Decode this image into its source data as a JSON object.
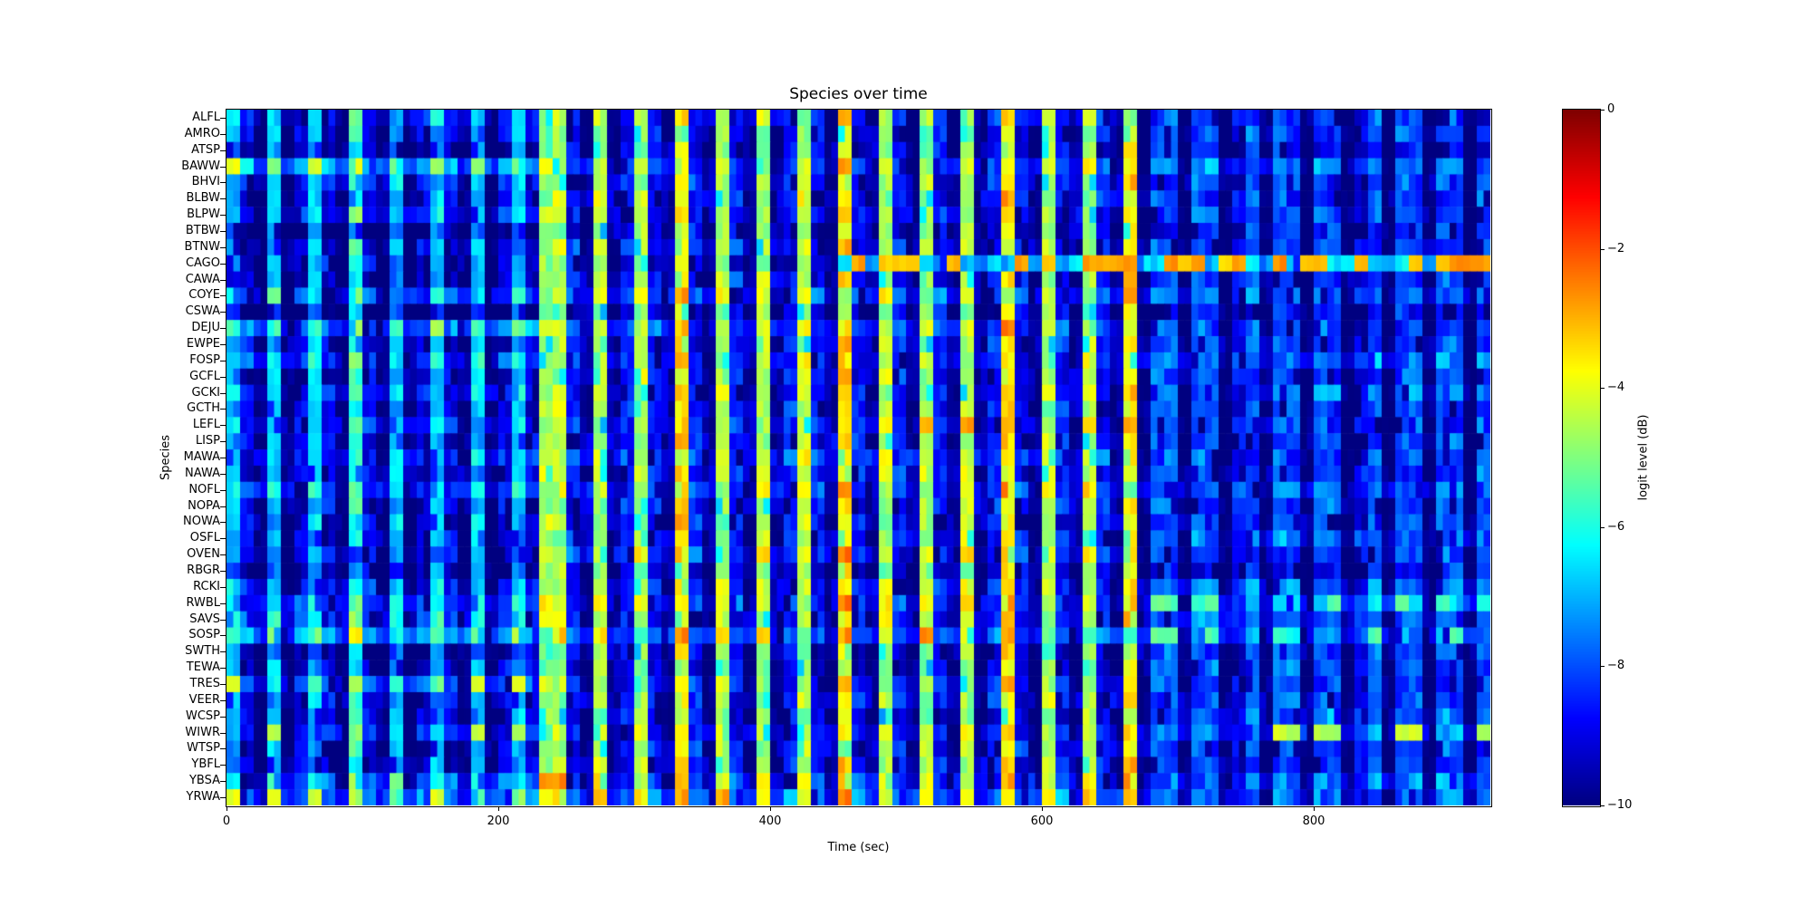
{
  "figure": {
    "background": "#ffffff"
  },
  "chart_data": {
    "type": "heatmap",
    "title": "Species over time",
    "xlabel": "Time (sec)",
    "ylabel": "Species",
    "colormap": "jet",
    "x_range": [
      0,
      930
    ],
    "x_ticks": [
      0,
      200,
      400,
      600,
      800
    ],
    "x_tick_labels": [
      "0",
      "200",
      "400",
      "600",
      "800"
    ],
    "colorbar": {
      "label": "logit level (dB)",
      "vmin": -10,
      "vmax": 0,
      "ticks": [
        0,
        -2,
        -4,
        -6,
        -8,
        -10
      ],
      "tick_labels": [
        "0",
        "−2",
        "−4",
        "−6",
        "−8",
        "−10"
      ]
    },
    "bin_seconds": 10,
    "level_encoding": "each char is one 10-sec column: '0'..'9' = 0..-9 dB, 'a' = -10 dB; row value = column level + row segment offset",
    "segment_boundaries_sec": [
      230,
      450,
      670
    ],
    "column_levels": "79a7a979a69a7a979a7a979559a5a959a49a59a5a959a49a59a59a5a949a59a59a4a88a88a98a88a88a98a88a88a8",
    "seed": 42,
    "rows": [
      {
        "code": "ALFL",
        "offsets": [
          0.5,
          0.5,
          0.5,
          0
        ],
        "peak": -5.5,
        "peak_segs": [
          1,
          2
        ],
        "peak_rate": 0.2
      },
      {
        "code": "AMRO",
        "offsets": [
          0,
          0,
          0,
          0
        ]
      },
      {
        "code": "ATSP",
        "offsets": [
          -0.5,
          0,
          0,
          -0.5
        ]
      },
      {
        "code": "BAWW",
        "offsets": [
          2,
          1,
          1,
          0.5
        ],
        "peak": -4,
        "peak_segs": [
          0,
          1,
          2
        ],
        "peak_rate": 0.35
      },
      {
        "code": "BHVI",
        "offsets": [
          0.5,
          0.5,
          0.5,
          0
        ]
      },
      {
        "code": "BLBW",
        "offsets": [
          0,
          0.5,
          0.5,
          0
        ]
      },
      {
        "code": "BLPW",
        "offsets": [
          0.5,
          0.5,
          0.5,
          0
        ]
      },
      {
        "code": "BTBW",
        "offsets": [
          -1,
          0,
          0,
          -0.5
        ]
      },
      {
        "code": "BTNW",
        "offsets": [
          0,
          0.5,
          0.5,
          0
        ]
      },
      {
        "code": "CAGO",
        "offsets": [
          0,
          0,
          0,
          0
        ],
        "flat": {
          "segs": [
            2,
            3
          ],
          "level": -6.8
        },
        "peak": -3,
        "peak_segs": [
          2,
          3
        ],
        "peak_rate": 0.5
      },
      {
        "code": "CAWA",
        "offsets": [
          -0.5,
          0.5,
          0.5,
          0
        ]
      },
      {
        "code": "COYE",
        "offsets": [
          1,
          1,
          1,
          0.5
        ],
        "peak": -5,
        "peak_segs": [
          1,
          2
        ],
        "peak_rate": 0.3
      },
      {
        "code": "CSWA",
        "offsets": [
          -1,
          0,
          0,
          -0.5
        ]
      },
      {
        "code": "DEJU",
        "offsets": [
          1.5,
          1,
          1,
          0
        ],
        "peak": -4.3,
        "peak_segs": [
          0,
          1,
          2
        ],
        "peak_rate": 0.3
      },
      {
        "code": "EWPE",
        "offsets": [
          0,
          0.5,
          0.5,
          0
        ]
      },
      {
        "code": "FOSP",
        "offsets": [
          1,
          0.5,
          0.5,
          0.5
        ]
      },
      {
        "code": "GCFL",
        "offsets": [
          0,
          0.5,
          0.5,
          0
        ]
      },
      {
        "code": "GCKI",
        "offsets": [
          0.5,
          0.5,
          0.5,
          0.5
        ]
      },
      {
        "code": "GCTH",
        "offsets": [
          0,
          0.5,
          0.5,
          0
        ]
      },
      {
        "code": "LEFL",
        "offsets": [
          0.5,
          0.5,
          0.5,
          0
        ],
        "peak": -3,
        "peak_segs": [
          2
        ],
        "peak_rate": 0.4
      },
      {
        "code": "LISP",
        "offsets": [
          0,
          0.5,
          0.5,
          0
        ]
      },
      {
        "code": "MAWA",
        "offsets": [
          0.5,
          1,
          1,
          0
        ],
        "peak": -4.5,
        "peak_segs": [
          1,
          2
        ],
        "peak_rate": 0.25
      },
      {
        "code": "NAWA",
        "offsets": [
          0,
          0.5,
          0.5,
          0
        ]
      },
      {
        "code": "NOFL",
        "offsets": [
          1,
          1,
          1,
          0.5
        ],
        "peak": -5,
        "peak_segs": [
          1,
          2
        ],
        "peak_rate": 0.3
      },
      {
        "code": "NOPA",
        "offsets": [
          0,
          0.5,
          0.5,
          0
        ]
      },
      {
        "code": "NOWA",
        "offsets": [
          0,
          0.5,
          0.5,
          0
        ]
      },
      {
        "code": "OSFL",
        "offsets": [
          0,
          0.5,
          0.5,
          0.5
        ]
      },
      {
        "code": "OVEN",
        "offsets": [
          0,
          1,
          1,
          0
        ]
      },
      {
        "code": "RBGR",
        "offsets": [
          -0.5,
          0,
          0,
          -0.5
        ]
      },
      {
        "code": "RCKI",
        "offsets": [
          0.5,
          0.5,
          0.5,
          0.5
        ]
      },
      {
        "code": "RWBL",
        "offsets": [
          1,
          1,
          1,
          1
        ],
        "peak": -5.5,
        "peak_segs": [
          3
        ],
        "peak_rate": 0.35
      },
      {
        "code": "SAVS",
        "offsets": [
          1,
          0.5,
          0.5,
          0.5
        ]
      },
      {
        "code": "SOSP",
        "offsets": [
          2,
          1.5,
          1.5,
          1
        ],
        "peak": -5.5,
        "peak_segs": [
          0,
          1,
          2,
          3
        ],
        "peak_rate": 0.3
      },
      {
        "code": "SWTH",
        "offsets": [
          -0.5,
          0,
          0,
          0
        ]
      },
      {
        "code": "TEWA",
        "offsets": [
          0,
          0,
          0,
          0
        ]
      },
      {
        "code": "TRES",
        "offsets": [
          1,
          0.5,
          0.5,
          0
        ],
        "peak": -4.3,
        "peak_segs": [
          0
        ],
        "peak_rate": 0.5
      },
      {
        "code": "VEER",
        "offsets": [
          0,
          0.5,
          0.5,
          0
        ]
      },
      {
        "code": "WCSP",
        "offsets": [
          0,
          0,
          0,
          0.5
        ]
      },
      {
        "code": "WIWR",
        "offsets": [
          0.5,
          0.5,
          0.5,
          1
        ],
        "peak": -4.3,
        "peak_segs": [
          0,
          3
        ],
        "peak_rate": 0.4
      },
      {
        "code": "WTSP",
        "offsets": [
          0,
          0.5,
          0.5,
          0
        ]
      },
      {
        "code": "YBFL",
        "offsets": [
          0,
          0.5,
          0.5,
          0
        ]
      },
      {
        "code": "YBSA",
        "offsets": [
          1,
          1,
          1,
          0.5
        ],
        "peak": -2.8,
        "peak_segs": [
          1,
          2
        ],
        "peak_rate": 0.25
      },
      {
        "code": "YRWA",
        "offsets": [
          1.5,
          1.5,
          1.5,
          0.5
        ],
        "peak": -4,
        "peak_segs": [
          0,
          1,
          2
        ],
        "peak_rate": 0.3
      }
    ]
  }
}
